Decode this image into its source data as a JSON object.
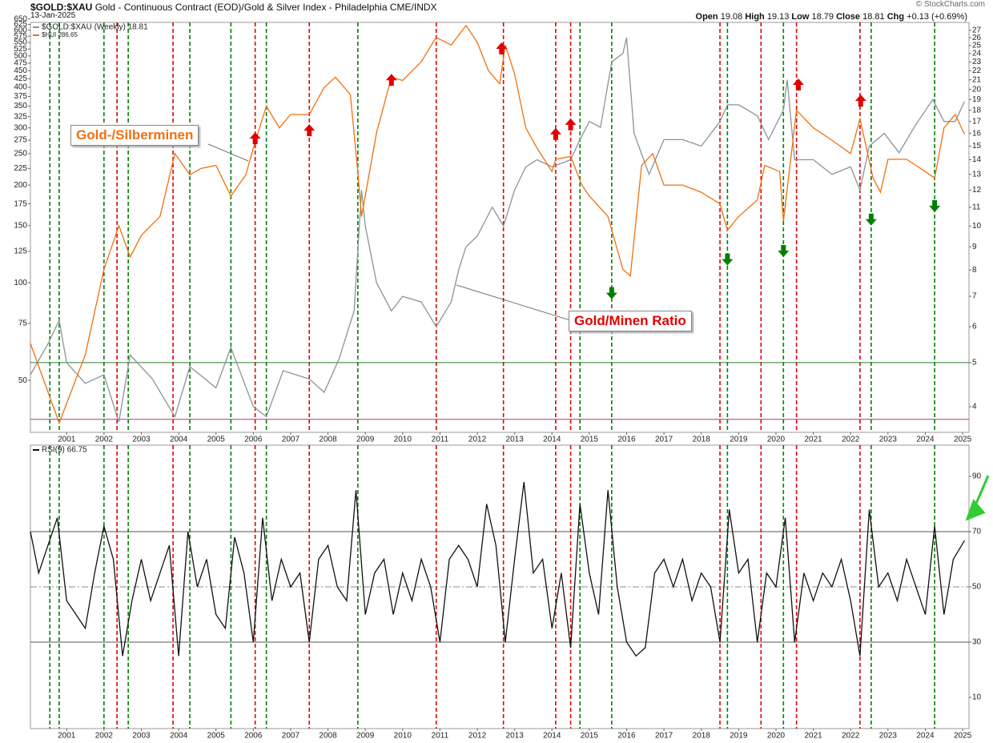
{
  "header": {
    "symbol": "$GOLD:$XAU",
    "description": "Gold - Continuous Contract (EOD)/Gold & Silver Index - Philadelphia",
    "exchange": "CME/INDX",
    "date": "13-Jan-2025",
    "source": "© StockCharts.com",
    "quote": [
      {
        "label": "Open",
        "value": 19.08
      },
      {
        "label": "High",
        "value": 19.13
      },
      {
        "label": "Low",
        "value": 18.79
      },
      {
        "label": "Close",
        "value": 18.81
      },
      {
        "label": "Chg",
        "value": "+0.13 (+0.69%)"
      }
    ]
  },
  "chart_data": [
    {
      "type": "line",
      "xlim": [
        2000.03,
        2025.17
      ],
      "xticks": [
        2001,
        2002,
        2003,
        2004,
        2005,
        2006,
        2007,
        2008,
        2009,
        2010,
        2011,
        2012,
        2013,
        2014,
        2015,
        2016,
        2017,
        2018,
        2019,
        2020,
        2021,
        2022,
        2023,
        2024,
        2025
      ],
      "ylog": true,
      "ylim": [
        34.6,
        634
      ],
      "yticks": [
        50,
        75,
        100,
        125,
        150,
        175,
        200,
        225,
        250,
        275,
        300,
        325,
        350,
        375,
        400,
        425,
        450,
        475,
        500,
        525,
        550,
        575,
        600,
        625,
        650
      ],
      "y2log": true,
      "y2lim": [
        3.51,
        28.1
      ],
      "y2ticks": [
        4,
        5,
        6,
        7,
        8,
        9,
        10,
        11,
        12,
        13,
        14,
        15,
        16,
        17,
        18,
        19,
        20,
        21,
        22,
        23,
        24,
        25,
        26,
        27
      ],
      "series": [
        {
          "name": "$GOLD:$XAU (Weekly) 18.81",
          "color": "#8a9499",
          "axis": "y2",
          "x": [
            2000.03,
            2000.5,
            2000.8,
            2001.0,
            2001.5,
            2002.0,
            2002.4,
            2002.7,
            2003.3,
            2003.9,
            2004.3,
            2005.0,
            2005.4,
            2006.0,
            2006.35,
            2006.8,
            2007.5,
            2007.9,
            2008.3,
            2008.7,
            2008.9,
            2009.0,
            2009.3,
            2009.7,
            2010.0,
            2010.5,
            2010.9,
            2011.3,
            2011.5,
            2011.7,
            2012.0,
            2012.4,
            2012.7,
            2013.0,
            2013.3,
            2013.6,
            2014.0,
            2014.5,
            2014.75,
            2015.0,
            2015.3,
            2015.6,
            2015.9,
            2016.0,
            2016.2,
            2016.6,
            2017.0,
            2017.5,
            2018.0,
            2018.5,
            2018.7,
            2019.0,
            2019.5,
            2019.8,
            2020.2,
            2020.3,
            2020.5,
            2021.0,
            2021.5,
            2022.0,
            2022.25,
            2022.5,
            2022.9,
            2023.3,
            2023.7,
            2024.2,
            2024.5,
            2024.8,
            2025.05
          ],
          "values": [
            4.7,
            5.5,
            6.2,
            5.0,
            4.5,
            4.7,
            3.7,
            5.2,
            4.6,
            3.8,
            4.9,
            4.4,
            5.4,
            4.0,
            3.8,
            4.8,
            4.6,
            4.3,
            5.1,
            6.5,
            12,
            10,
            7.5,
            6.5,
            7.0,
            6.8,
            6.0,
            6.8,
            8.0,
            9.0,
            9.5,
            11,
            10,
            12,
            13.5,
            14,
            13.5,
            14,
            15.5,
            17,
            16.5,
            23,
            24,
            26,
            16,
            13,
            15.5,
            15.5,
            15,
            17,
            18.5,
            18.5,
            17.5,
            15.5,
            18,
            21,
            14,
            14,
            13,
            13.5,
            12,
            15,
            16,
            14.5,
            16.5,
            19,
            17,
            17,
            18.81
          ]
        },
        {
          "name": "$HUI 286.65",
          "color": "#f07010",
          "axis": "y",
          "x": [
            2000.03,
            2000.8,
            2001.5,
            2002.0,
            2002.4,
            2002.7,
            2003.0,
            2003.5,
            2003.9,
            2004.3,
            2004.6,
            2005.0,
            2005.4,
            2005.8,
            2006.0,
            2006.35,
            2006.7,
            2007.0,
            2007.5,
            2007.9,
            2008.2,
            2008.6,
            2008.8,
            2008.9,
            2009.3,
            2009.7,
            2010.0,
            2010.5,
            2010.9,
            2011.3,
            2011.7,
            2012.0,
            2012.3,
            2012.6,
            2012.75,
            2013.0,
            2013.3,
            2013.6,
            2014.0,
            2014.1,
            2014.5,
            2014.8,
            2015.0,
            2015.5,
            2015.9,
            2016.1,
            2016.4,
            2016.7,
            2017.0,
            2017.5,
            2018.0,
            2018.5,
            2018.7,
            2019.0,
            2019.5,
            2019.7,
            2020.1,
            2020.2,
            2020.55,
            2021.0,
            2021.5,
            2022.0,
            2022.25,
            2022.6,
            2022.8,
            2023.0,
            2023.5,
            2024.0,
            2024.25,
            2024.5,
            2024.8,
            2025.05
          ],
          "values": [
            65,
            37,
            60,
            110,
            150,
            120,
            140,
            160,
            250,
            215,
            225,
            230,
            185,
            215,
            260,
            350,
            300,
            330,
            330,
            400,
            430,
            380,
            220,
            160,
            290,
            430,
            420,
            480,
            570,
            540,
            620,
            550,
            450,
            410,
            540,
            440,
            300,
            260,
            220,
            240,
            245,
            200,
            185,
            160,
            110,
            105,
            230,
            250,
            200,
            200,
            190,
            175,
            145,
            160,
            180,
            230,
            220,
            155,
            340,
            300,
            275,
            250,
            320,
            210,
            190,
            240,
            240,
            220,
            210,
            300,
            330,
            287
          ]
        }
      ],
      "reference_lines": [
        {
          "value": 5,
          "axis": "y2",
          "color": "#2e7d32"
        },
        {
          "value": 3.75,
          "axis": "y2",
          "color": "#b0308a"
        }
      ],
      "vlines": [
        {
          "x": 2000.55,
          "color": "#008000"
        },
        {
          "x": 2000.8,
          "color": "#008000"
        },
        {
          "x": 2002.0,
          "color": "#008000"
        },
        {
          "x": 2002.35,
          "color": "#e00000"
        },
        {
          "x": 2002.65,
          "color": "#008000"
        },
        {
          "x": 2003.85,
          "color": "#e00000"
        },
        {
          "x": 2004.3,
          "color": "#008000"
        },
        {
          "x": 2005.4,
          "color": "#008000"
        },
        {
          "x": 2006.05,
          "color": "#e00000"
        },
        {
          "x": 2006.35,
          "color": "#008000"
        },
        {
          "x": 2007.5,
          "color": "#e00000"
        },
        {
          "x": 2008.8,
          "color": "#008000"
        },
        {
          "x": 2010.9,
          "color": "#e00000"
        },
        {
          "x": 2012.7,
          "color": "#e00000"
        },
        {
          "x": 2014.1,
          "color": "#e00000"
        },
        {
          "x": 2014.5,
          "color": "#e00000"
        },
        {
          "x": 2014.75,
          "color": "#008000"
        },
        {
          "x": 2015.6,
          "color": "#008000"
        },
        {
          "x": 2018.5,
          "color": "#e00000"
        },
        {
          "x": 2018.7,
          "color": "#008000"
        },
        {
          "x": 2019.6,
          "color": "#e00000"
        },
        {
          "x": 2020.2,
          "color": "#008000"
        },
        {
          "x": 2020.55,
          "color": "#e00000"
        },
        {
          "x": 2022.25,
          "color": "#e00000"
        },
        {
          "x": 2022.55,
          "color": "#008000"
        },
        {
          "x": 2024.25,
          "color": "#008000"
        }
      ],
      "markers": [
        {
          "x": 2006.05,
          "y": 291,
          "direction": "down",
          "color": "#e00000"
        },
        {
          "x": 2007.5,
          "y": 308,
          "direction": "down",
          "color": "#e00000"
        },
        {
          "x": 2009.7,
          "y": 440,
          "direction": "down",
          "color": "#e00000"
        },
        {
          "x": 2012.65,
          "y": 550,
          "direction": "down",
          "color": "#e00000"
        },
        {
          "x": 2014.1,
          "y": 300,
          "direction": "down",
          "color": "#e00000"
        },
        {
          "x": 2014.5,
          "y": 321,
          "direction": "down",
          "color": "#e00000"
        },
        {
          "x": 2020.6,
          "y": 426,
          "direction": "down",
          "color": "#e00000"
        },
        {
          "x": 2022.27,
          "y": 380,
          "direction": "down",
          "color": "#e00000"
        },
        {
          "x": 2015.6,
          "y": 89,
          "direction": "up",
          "color": "#008000"
        },
        {
          "x": 2018.7,
          "y": 113,
          "direction": "up",
          "color": "#008000"
        },
        {
          "x": 2020.2,
          "y": 120,
          "direction": "up",
          "color": "#008000"
        },
        {
          "x": 2022.55,
          "y": 150,
          "direction": "up",
          "color": "#008000"
        },
        {
          "x": 2024.25,
          "y": 165,
          "direction": "up",
          "color": "#008000"
        }
      ],
      "annotations": [
        "Gold-/Silberminen",
        "Gold/Minen Ratio"
      ]
    },
    {
      "type": "line",
      "xlim": [
        2000.03,
        2025.17
      ],
      "ylim": [
        -1.3,
        101.3
      ],
      "yticks": [
        10,
        30,
        50,
        70,
        90
      ],
      "series": [
        {
          "name": "RSI(9) 66.75",
          "color": "#111111",
          "x": [
            2000.03,
            2000.25,
            2000.5,
            2000.75,
            2001.0,
            2001.25,
            2001.5,
            2001.75,
            2002.0,
            2002.25,
            2002.5,
            2002.75,
            2003.0,
            2003.25,
            2003.5,
            2003.75,
            2004.0,
            2004.25,
            2004.5,
            2004.75,
            2005.0,
            2005.25,
            2005.5,
            2005.75,
            2006.0,
            2006.25,
            2006.5,
            2006.75,
            2007.0,
            2007.25,
            2007.5,
            2007.75,
            2008.0,
            2008.25,
            2008.5,
            2008.75,
            2009.0,
            2009.25,
            2009.5,
            2009.75,
            2010.0,
            2010.25,
            2010.5,
            2010.75,
            2011.0,
            2011.25,
            2011.5,
            2011.75,
            2012.0,
            2012.25,
            2012.5,
            2012.75,
            2013.0,
            2013.25,
            2013.5,
            2013.75,
            2014.0,
            2014.25,
            2014.5,
            2014.75,
            2015.0,
            2015.25,
            2015.5,
            2015.75,
            2016.0,
            2016.25,
            2016.5,
            2016.75,
            2017.0,
            2017.25,
            2017.5,
            2017.75,
            2018.0,
            2018.25,
            2018.5,
            2018.75,
            2019.0,
            2019.25,
            2019.5,
            2019.75,
            2020.0,
            2020.25,
            2020.5,
            2020.75,
            2021.0,
            2021.25,
            2021.5,
            2021.75,
            2022.0,
            2022.25,
            2022.5,
            2022.75,
            2023.0,
            2023.25,
            2023.5,
            2023.75,
            2024.0,
            2024.25,
            2024.5,
            2024.75,
            2025.05
          ],
          "values": [
            70,
            55,
            65,
            75,
            45,
            40,
            35,
            55,
            72,
            60,
            25,
            45,
            60,
            45,
            55,
            65,
            25,
            70,
            50,
            60,
            40,
            35,
            68,
            55,
            30,
            75,
            45,
            60,
            50,
            55,
            30,
            60,
            65,
            50,
            45,
            85,
            40,
            55,
            60,
            40,
            55,
            45,
            60,
            50,
            30,
            60,
            65,
            60,
            50,
            80,
            65,
            30,
            60,
            88,
            55,
            60,
            35,
            55,
            28,
            80,
            55,
            40,
            85,
            50,
            30,
            25,
            28,
            55,
            60,
            50,
            60,
            45,
            55,
            50,
            30,
            78,
            55,
            60,
            30,
            55,
            50,
            75,
            30,
            55,
            45,
            55,
            50,
            60,
            45,
            25,
            78,
            50,
            55,
            45,
            60,
            50,
            40,
            72,
            40,
            60,
            66.75
          ]
        }
      ],
      "reference_lines": [
        {
          "value": 70,
          "color": "#555555"
        },
        {
          "value": 50,
          "color": "#888888",
          "dashed": true
        },
        {
          "value": 30,
          "color": "#555555"
        }
      ]
    }
  ]
}
